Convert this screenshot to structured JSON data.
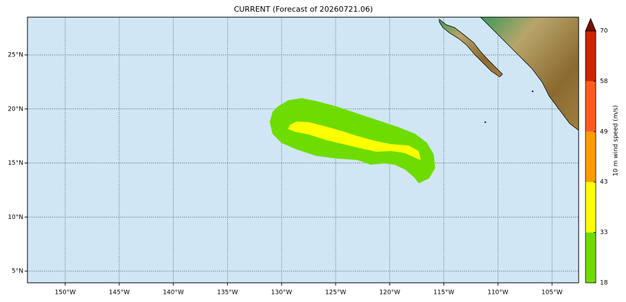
{
  "map": {
    "title": "CURRENT (Forecast of 20260721.06)",
    "lon_labels": [
      "150°W",
      "145°W",
      "140°W",
      "135°W",
      "130°W",
      "125°W",
      "120°W",
      "115°W",
      "110°W",
      "105°W"
    ],
    "lat_labels": [
      "25°N",
      "20°N",
      "15°N",
      "10°N",
      "5°N"
    ],
    "colorbar": {
      "label": "10 m wind speed (m/s)",
      "ticks": [
        18,
        33,
        43,
        49,
        58,
        70
      ],
      "colors": [
        "#6fdc00",
        "#ffff00",
        "#ff9c00",
        "#ff5a20",
        "#cc2500"
      ],
      "extend_color": "#7a0e00"
    }
  }
}
